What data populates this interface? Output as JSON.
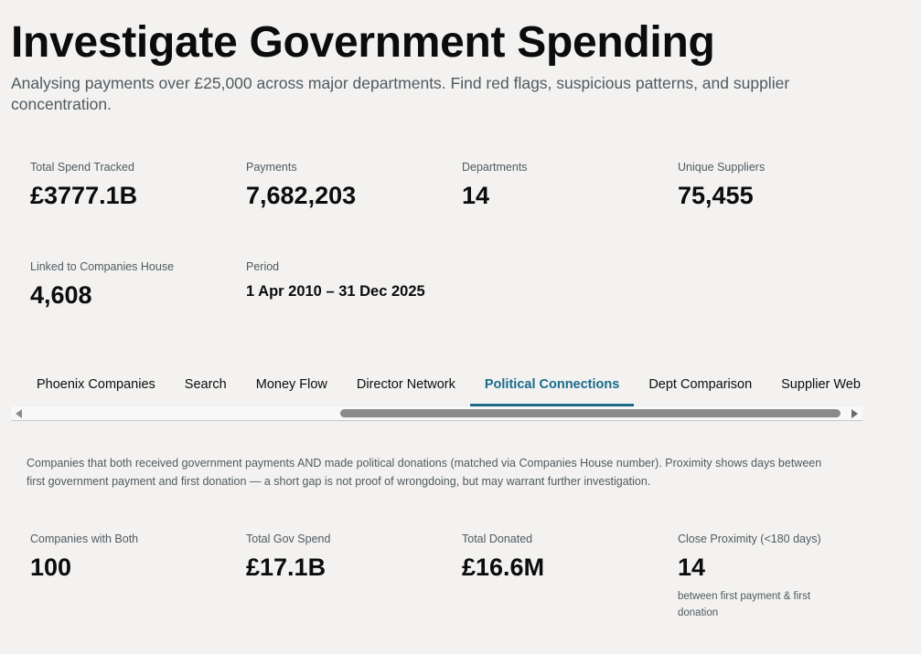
{
  "header": {
    "title": "Investigate Government Spending",
    "subtitle": "Analysing payments over £25,000 across major departments. Find red flags, suspicious patterns, and supplier concentration."
  },
  "summary": {
    "total_spend": {
      "label": "Total Spend Tracked",
      "value": "£3777.1B"
    },
    "payments": {
      "label": "Payments",
      "value": "7,682,203"
    },
    "departments": {
      "label": "Departments",
      "value": "14"
    },
    "suppliers": {
      "label": "Unique Suppliers",
      "value": "75,455"
    },
    "linked": {
      "label": "Linked to Companies House",
      "value": "4,608"
    },
    "period": {
      "label": "Period",
      "value": "1 Apr 2010 – 31 Dec 2025"
    }
  },
  "tabs": [
    {
      "label": "Phoenix Companies",
      "active": false
    },
    {
      "label": "Search",
      "active": false
    },
    {
      "label": "Money Flow",
      "active": false
    },
    {
      "label": "Director Network",
      "active": false
    },
    {
      "label": "Political Connections",
      "active": true
    },
    {
      "label": "Dept Comparison",
      "active": false
    },
    {
      "label": "Supplier Web",
      "active": false
    }
  ],
  "political": {
    "description": "Companies that both received government payments AND made political donations (matched via Companies House number). Proximity shows days between first government payment and first donation — a short gap is not proof of wrongdoing, but may warrant further investigation.",
    "stats": {
      "companies": {
        "label": "Companies with Both",
        "value": "100"
      },
      "gov_spend": {
        "label": "Total Gov Spend",
        "value": "£17.1B"
      },
      "donated": {
        "label": "Total Donated",
        "value": "£16.6M"
      },
      "proximity": {
        "label": "Close Proximity (<180 days)",
        "value": "14",
        "note": "between first payment & first donation"
      }
    }
  },
  "colors": {
    "accent": "#1d6b85",
    "background": "#f3f2f1",
    "muted": "#505a5f"
  }
}
